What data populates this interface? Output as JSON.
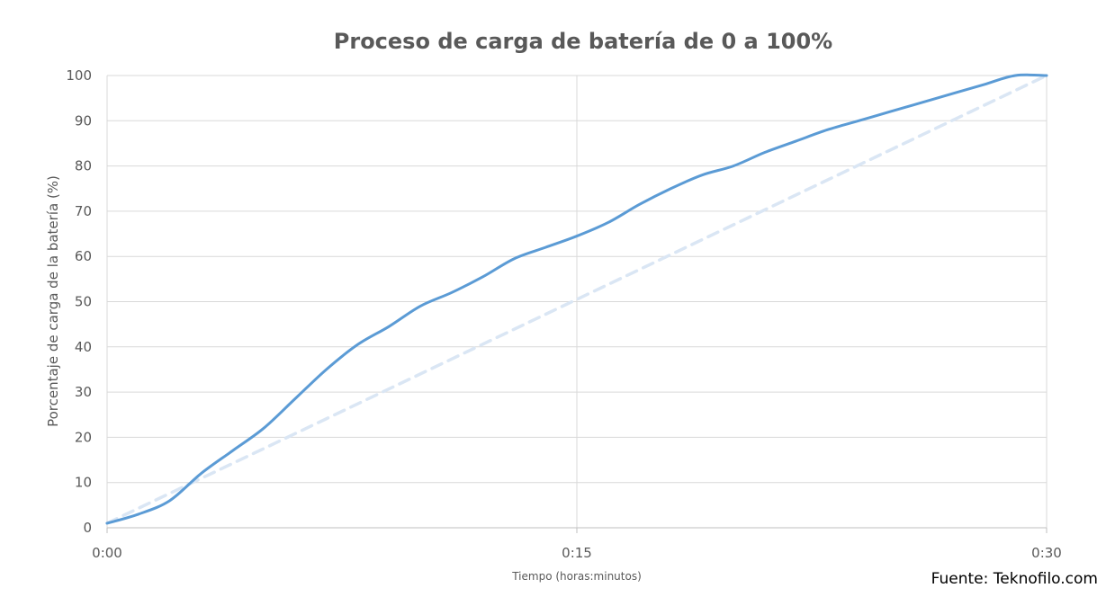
{
  "chart_data": {
    "type": "line",
    "title": "Proceso de carga de batería de 0 a 100%",
    "xlabel": "Tiempo (horas:minutos)",
    "ylabel": "Porcentaje de carga de la batería (%)",
    "x_tick_labels": [
      "0:00",
      "0:15",
      "0:30"
    ],
    "x_tick_values": [
      0,
      15,
      30
    ],
    "y_tick_labels": [
      "0",
      "10",
      "20",
      "30",
      "40",
      "50",
      "60",
      "70",
      "80",
      "90",
      "100"
    ],
    "xlim": [
      0,
      30
    ],
    "ylim": [
      0,
      100
    ],
    "grid": true,
    "series": [
      {
        "color": "#5b9bd5",
        "style": "solid",
        "x": [
          0,
          1,
          2,
          3,
          4,
          5,
          6,
          7,
          8,
          9,
          10,
          11,
          12,
          13,
          14,
          15,
          16,
          17,
          18,
          19,
          20,
          21,
          22,
          23,
          24,
          25,
          26,
          27,
          28,
          29,
          30
        ],
        "y": [
          1,
          3,
          6,
          12,
          17,
          22,
          28.5,
          35,
          40.5,
          44.5,
          49,
          52,
          55.5,
          59.5,
          62,
          64.5,
          67.5,
          71.5,
          75,
          78,
          80,
          83,
          85.5,
          88,
          90,
          92,
          94,
          96,
          98,
          100,
          100
        ]
      },
      {
        "color": "#dae6f4",
        "style": "dashed",
        "x": [
          0,
          30
        ],
        "y": [
          1,
          100
        ]
      }
    ],
    "source_note": "Fuente: Teknofilo.com"
  }
}
